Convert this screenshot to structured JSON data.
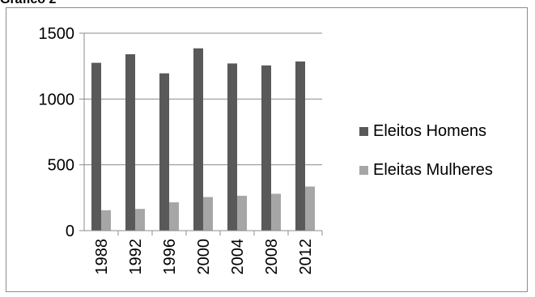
{
  "caption": "Gráfico 2",
  "chart_data": {
    "type": "bar",
    "title": "",
    "xlabel": "",
    "ylabel": "",
    "categories": [
      "1988",
      "1992",
      "1996",
      "2000",
      "2004",
      "2008",
      "2012"
    ],
    "series": [
      {
        "name": "Eleitos Homens",
        "color": "#595959",
        "values": [
          1275,
          1340,
          1195,
          1385,
          1270,
          1255,
          1285
        ]
      },
      {
        "name": "Eleitas Mulheres",
        "color": "#a6a6a6",
        "values": [
          155,
          165,
          215,
          255,
          265,
          280,
          335
        ]
      }
    ],
    "ylim": [
      0,
      1500
    ],
    "yticks": [
      "0",
      "500",
      "1000",
      "1500"
    ],
    "grid": true,
    "legend_position": "right"
  }
}
